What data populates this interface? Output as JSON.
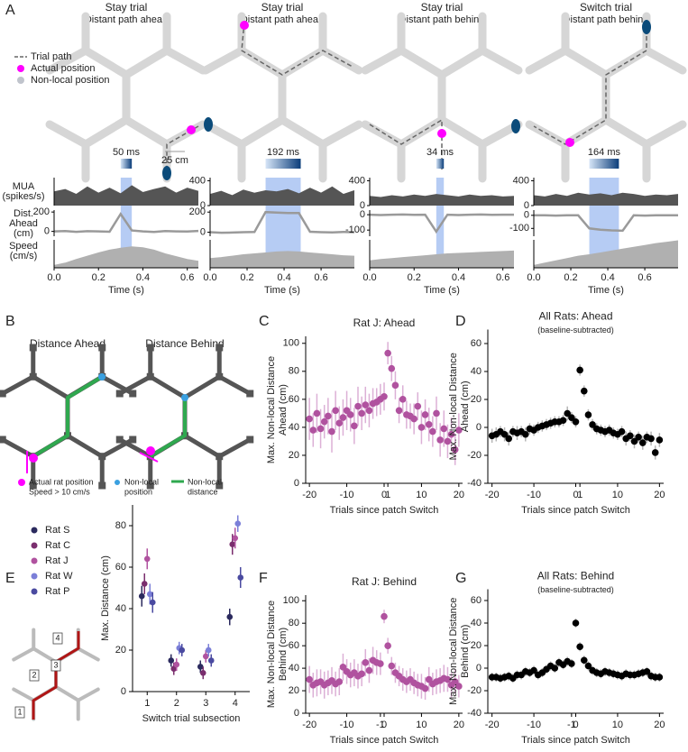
{
  "panel_labels": [
    "A",
    "B",
    "C",
    "D",
    "E",
    "F",
    "G"
  ],
  "panel_a": {
    "legend": [
      "Trial path",
      "Actual position",
      "Non-local position"
    ],
    "scale_bar": "25 cm",
    "row_labels": [
      [
        "MUA",
        "(spikes/s)"
      ],
      [
        "Dist.",
        "Ahead",
        "(cm)"
      ],
      [
        "Speed",
        "(cm/s)"
      ]
    ],
    "colors": {
      "mua": "#555555",
      "dist": "#9a9a9a",
      "speed": "#b0b0b0",
      "window": "#a9c3f2"
    },
    "trials": [
      {
        "title": "Stay trial",
        "subtitle": "Distant path ahead",
        "window_label": "50 ms",
        "window": [
          0.3,
          0.35
        ],
        "xlabel": "Time (s)",
        "xlim": [
          0,
          0.65
        ],
        "xticks": [
          {
            "value": 0,
            "label": "0.0"
          },
          0.2,
          0.4,
          0.6
        ],
        "x": [
          0,
          0.05,
          0.1,
          0.15,
          0.2,
          0.25,
          0.3,
          0.35,
          0.4,
          0.45,
          0.5,
          0.55,
          0.6,
          0.65
        ],
        "mua": {
          "ylim": [
            0,
            450
          ],
          "yticks": [],
          "values": [
            220,
            260,
            180,
            300,
            200,
            280,
            190,
            320,
            210,
            260,
            300,
            200,
            280,
            230
          ]
        },
        "dist": {
          "ylim": [
            -50,
            220
          ],
          "yticks": [
            0,
            200
          ],
          "values": [
            0,
            3,
            -4,
            2,
            0,
            -3,
            180,
            10,
            0,
            -5,
            3,
            0,
            -2,
            5
          ]
        },
        "speed": {
          "ylim": [
            0,
            60
          ],
          "yticks": [],
          "values": [
            5,
            10,
            18,
            25,
            32,
            38,
            42,
            45,
            43,
            38,
            30,
            24,
            18,
            14
          ]
        }
      },
      {
        "title": "Stay trial",
        "subtitle": "Distant path ahead",
        "window_label": "192 ms",
        "window": [
          0.3,
          0.49
        ],
        "xlabel": "Time (s)",
        "xlim": [
          0,
          0.78
        ],
        "xticks": [
          {
            "value": 0,
            "label": "0.0"
          },
          0.2,
          0.4,
          0.6
        ],
        "x": [
          0,
          0.06,
          0.12,
          0.18,
          0.24,
          0.3,
          0.36,
          0.42,
          0.48,
          0.54,
          0.6,
          0.66,
          0.72,
          0.78
        ],
        "mua": {
          "ylim": [
            0,
            450
          ],
          "yticks": [
            0,
            400
          ],
          "values": [
            180,
            230,
            160,
            250,
            200,
            240,
            220,
            260,
            190,
            280,
            200,
            300,
            180,
            240
          ]
        },
        "dist": {
          "ylim": [
            -40,
            220
          ],
          "yticks": [
            0,
            200
          ],
          "values": [
            0,
            -5,
            -3,
            0,
            2,
            200,
            195,
            190,
            190,
            5,
            0,
            -2,
            3,
            0
          ]
        },
        "speed": {
          "ylim": [
            0,
            60
          ],
          "yticks": [],
          "values": [
            20,
            22,
            25,
            28,
            30,
            32,
            34,
            35,
            34,
            32,
            30,
            28,
            26,
            25
          ]
        }
      },
      {
        "title": "Stay trial",
        "subtitle": "Distant path behind",
        "window_label": "34 ms",
        "window": [
          0.3,
          0.334
        ],
        "xlabel": "Time (s)",
        "xlim": [
          0,
          0.65
        ],
        "xticks": [
          {
            "value": 0,
            "label": "0.0"
          },
          0.2,
          0.4,
          0.6
        ],
        "x": [
          0,
          0.05,
          0.1,
          0.15,
          0.2,
          0.25,
          0.3,
          0.35,
          0.4,
          0.45,
          0.5,
          0.55,
          0.6,
          0.65
        ],
        "mua": {
          "ylim": [
            0,
            450
          ],
          "yticks": [
            0,
            400
          ],
          "values": [
            150,
            130,
            160,
            140,
            170,
            150,
            180,
            160,
            140,
            170,
            150,
            160,
            140,
            150
          ]
        },
        "dist": {
          "ylim": [
            -140,
            30
          ],
          "yticks": [
            -100,
            0
          ],
          "values": [
            0,
            -2,
            0,
            1,
            -1,
            0,
            -110,
            0,
            -2,
            0,
            1,
            -1,
            0,
            0
          ]
        },
        "speed": {
          "ylim": [
            0,
            60
          ],
          "yticks": [],
          "values": [
            15,
            18,
            20,
            22,
            24,
            26,
            28,
            30,
            31,
            32,
            33,
            34,
            35,
            36
          ]
        }
      },
      {
        "title": "Switch trial",
        "subtitle": "Distant path behind",
        "window_label": "164 ms",
        "window": [
          0.3,
          0.46
        ],
        "xlabel": "Time (s)",
        "xlim": [
          0,
          0.78
        ],
        "xticks": [
          {
            "value": 0,
            "label": "0.0"
          },
          0.2,
          0.4,
          0.6
        ],
        "x": [
          0,
          0.06,
          0.12,
          0.18,
          0.24,
          0.3,
          0.36,
          0.42,
          0.48,
          0.54,
          0.6,
          0.66,
          0.72,
          0.78
        ],
        "mua": {
          "ylim": [
            0,
            450
          ],
          "yticks": [
            0,
            400
          ],
          "values": [
            160,
            140,
            180,
            150,
            200,
            170,
            190,
            160,
            200,
            180,
            150,
            170,
            160,
            180
          ]
        },
        "dist": {
          "ylim": [
            -160,
            40
          ],
          "yticks": [
            -100,
            0
          ],
          "values": [
            0,
            0,
            -2,
            1,
            0,
            -100,
            -110,
            -115,
            -118,
            0,
            -2,
            0,
            1,
            0
          ]
        },
        "speed": {
          "ylim": [
            0,
            60
          ],
          "yticks": [],
          "values": [
            5,
            10,
            15,
            20,
            25,
            28,
            32,
            36,
            40,
            44,
            48,
            52,
            55,
            58
          ]
        }
      }
    ]
  },
  "panel_b": {
    "titles": [
      "Distance Ahead",
      "Distance Behind"
    ],
    "actual": [
      "Actual rat position",
      "Speed > 10 cm/s"
    ],
    "nonlocal_position": [
      "Non-local",
      "position"
    ],
    "nonlocal_distance": [
      "Non-local",
      "distance"
    ]
  },
  "panel_e_maze": {
    "labels": [
      "1",
      "2",
      "3",
      "4"
    ]
  },
  "chart_data": [
    {
      "type": "errorbar",
      "title": "Rat J: Ahead",
      "xlabel": "Trials since patch Switch",
      "ylabel": [
        "Max. Non-local Distance",
        "Ahead (cm)"
      ],
      "color": "#b0529f",
      "error_color": "#dcb0d6",
      "xlim": [
        -21,
        21
      ],
      "xticks": [
        -20,
        -10,
        0,
        1,
        10,
        20
      ],
      "ylim": [
        0,
        105
      ],
      "yticks": [
        0,
        20,
        40,
        60,
        80,
        100
      ],
      "x": [
        -20,
        -19,
        -18,
        -17,
        -16,
        -15,
        -14,
        -13,
        -12,
        -11,
        -10,
        -9,
        -8,
        -7,
        -6,
        -5,
        -4,
        -3,
        -2,
        -1,
        0,
        1,
        2,
        3,
        4,
        5,
        6,
        7,
        8,
        9,
        10,
        11,
        12,
        13,
        14,
        15,
        16,
        17,
        18,
        19,
        20
      ],
      "values": [
        46,
        38,
        50,
        39,
        44,
        48,
        37,
        52,
        43,
        47,
        52,
        49,
        41,
        55,
        50,
        56,
        52,
        57,
        58,
        60,
        62,
        93,
        82,
        70,
        52,
        60,
        49,
        48,
        46,
        55,
        40,
        49,
        42,
        37,
        50,
        31,
        39,
        30,
        35,
        24,
        38
      ],
      "errors": [
        15,
        12,
        14,
        14,
        12,
        13,
        15,
        14,
        12,
        13,
        14,
        12,
        13,
        14,
        12,
        13,
        12,
        11,
        10,
        11,
        10,
        8,
        9,
        10,
        9,
        10,
        10,
        9,
        11,
        10,
        12,
        11,
        12,
        11,
        12,
        12,
        13,
        12,
        12,
        11,
        12
      ]
    },
    {
      "type": "errorbar",
      "title": "All Rats: Ahead",
      "subtitle": "(baseline-subtracted)",
      "xlabel": "Trials since patch Switch",
      "ylabel": [
        "Max. Non-local Distance",
        "Ahead (cm)"
      ],
      "color": "#000000",
      "error_color": "#b5b5b5",
      "xlim": [
        -21,
        21
      ],
      "xticks": [
        -20,
        -10,
        0,
        1,
        10,
        20
      ],
      "ylim": [
        -40,
        70
      ],
      "yticks": [
        -40,
        -20,
        0,
        20,
        40,
        60
      ],
      "x": [
        -20,
        -19,
        -18,
        -17,
        -16,
        -15,
        -14,
        -13,
        -12,
        -11,
        -10,
        -9,
        -8,
        -7,
        -6,
        -5,
        -4,
        -3,
        -2,
        -1,
        0,
        1,
        2,
        3,
        4,
        5,
        6,
        7,
        8,
        9,
        10,
        11,
        12,
        13,
        14,
        15,
        16,
        17,
        18,
        19,
        20
      ],
      "values": [
        -6,
        -5,
        -3,
        -5,
        -8,
        -3,
        -4,
        -3,
        -5,
        -1,
        -2,
        0,
        1,
        2,
        3,
        4,
        4,
        5,
        10,
        7,
        4,
        41,
        26,
        9,
        2,
        -1,
        -2,
        -3,
        -2,
        -4,
        -5,
        -3,
        -8,
        -6,
        -10,
        -7,
        -11,
        -7,
        -8,
        -18,
        -9
      ],
      "errors": [
        5,
        5,
        4,
        5,
        5,
        4,
        5,
        4,
        5,
        4,
        4,
        4,
        4,
        4,
        4,
        4,
        4,
        4,
        5,
        4,
        4,
        4,
        4,
        4,
        4,
        4,
        4,
        4,
        4,
        4,
        4,
        4,
        5,
        4,
        5,
        4,
        5,
        4,
        5,
        5,
        5
      ]
    },
    {
      "type": "grouped_errorbar",
      "xlabel": "Switch trial subsection",
      "ylabel": [
        "Max. Distance (cm)"
      ],
      "categories": [
        "1",
        "2",
        "3",
        "4"
      ],
      "ylim": [
        0,
        90
      ],
      "yticks": [
        0,
        20,
        40,
        60,
        80
      ],
      "series": [
        {
          "name": "Rat S",
          "color": "#2b2a5e",
          "values": [
            46,
            15,
            12,
            36
          ],
          "errors": [
            5,
            3,
            3,
            4
          ]
        },
        {
          "name": "Rat C",
          "color": "#7a2e6e",
          "values": [
            52,
            11,
            9,
            71
          ],
          "errors": [
            5,
            3,
            3,
            5
          ]
        },
        {
          "name": "Rat J",
          "color": "#b0529f",
          "values": [
            64,
            13,
            17,
            74
          ],
          "errors": [
            5,
            3,
            3,
            5
          ]
        },
        {
          "name": "Rat W",
          "color": "#7b7fd8",
          "values": [
            47,
            21,
            20,
            81
          ],
          "errors": [
            5,
            3,
            3,
            4
          ]
        },
        {
          "name": "Rat P",
          "color": "#4a4aa0",
          "values": [
            43,
            20,
            15,
            55
          ],
          "errors": [
            5,
            3,
            3,
            5
          ]
        }
      ]
    },
    {
      "type": "errorbar",
      "title": "Rat J: Behind",
      "xlabel": "Trials since patch Switch",
      "ylabel": [
        "Max. Non-local Distance",
        "Behind (cm)"
      ],
      "color": "#b0529f",
      "error_color": "#dcb0d6",
      "xlim": [
        -21,
        21
      ],
      "xticks": [
        -20,
        -10,
        -1,
        0,
        10,
        20
      ],
      "ylim": [
        0,
        105
      ],
      "yticks": [
        0,
        20,
        40,
        60,
        80,
        100
      ],
      "x": [
        -20,
        -19,
        -18,
        -17,
        -16,
        -15,
        -14,
        -13,
        -12,
        -11,
        -10,
        -9,
        -8,
        -7,
        -6,
        -5,
        -4,
        -3,
        -2,
        -1,
        0,
        1,
        2,
        3,
        4,
        5,
        6,
        7,
        8,
        9,
        10,
        11,
        12,
        13,
        14,
        15,
        16,
        17,
        18,
        19,
        20
      ],
      "values": [
        30,
        25,
        27,
        28,
        25,
        27,
        29,
        26,
        28,
        41,
        37,
        34,
        36,
        33,
        35,
        45,
        38,
        47,
        45,
        44,
        86,
        60,
        42,
        36,
        33,
        30,
        28,
        30,
        27,
        25,
        24,
        22,
        30,
        26,
        28,
        29,
        31,
        30,
        25,
        28,
        24
      ],
      "errors": [
        12,
        11,
        12,
        11,
        12,
        11,
        12,
        11,
        12,
        12,
        11,
        11,
        12,
        11,
        11,
        12,
        11,
        12,
        11,
        10,
        6,
        7,
        8,
        9,
        9,
        10,
        10,
        10,
        10,
        10,
        11,
        10,
        11,
        10,
        11,
        11,
        12,
        11,
        11,
        11,
        10
      ]
    },
    {
      "type": "errorbar",
      "title": "All Rats: Behind",
      "subtitle": "(baseline-subtracted)",
      "xlabel": "Trials since patch Switch",
      "ylabel": [
        "Max. Non-local Distance",
        "Behind (cm)"
      ],
      "color": "#000000",
      "error_color": "#b5b5b5",
      "xlim": [
        -21,
        21
      ],
      "xticks": [
        -20,
        -10,
        -1,
        0,
        10,
        20
      ],
      "ylim": [
        -40,
        70
      ],
      "yticks": [
        -40,
        -20,
        0,
        20,
        40,
        60
      ],
      "x": [
        -20,
        -19,
        -18,
        -17,
        -16,
        -15,
        -14,
        -13,
        -12,
        -11,
        -10,
        -9,
        -8,
        -7,
        -6,
        -5,
        -4,
        -3,
        -2,
        -1,
        0,
        1,
        2,
        3,
        4,
        5,
        6,
        7,
        8,
        9,
        10,
        11,
        12,
        13,
        14,
        15,
        16,
        17,
        18,
        19,
        20
      ],
      "values": [
        -8,
        -8,
        -9,
        -8,
        -7,
        -9,
        -6,
        -6,
        -3,
        -4,
        -2,
        -6,
        -4,
        -1,
        2,
        0,
        5,
        3,
        6,
        4,
        40,
        19,
        7,
        2,
        -2,
        -4,
        -5,
        -3,
        -4,
        -5,
        -6,
        -7,
        -5,
        -6,
        -6,
        -5,
        -4,
        -3,
        -7,
        -8,
        -8
      ],
      "errors": [
        4,
        4,
        4,
        4,
        4,
        4,
        4,
        4,
        4,
        4,
        4,
        4,
        4,
        4,
        4,
        4,
        4,
        4,
        4,
        4,
        4,
        4,
        4,
        4,
        4,
        4,
        4,
        4,
        4,
        4,
        4,
        4,
        4,
        4,
        4,
        4,
        4,
        4,
        4,
        4,
        4
      ]
    }
  ]
}
